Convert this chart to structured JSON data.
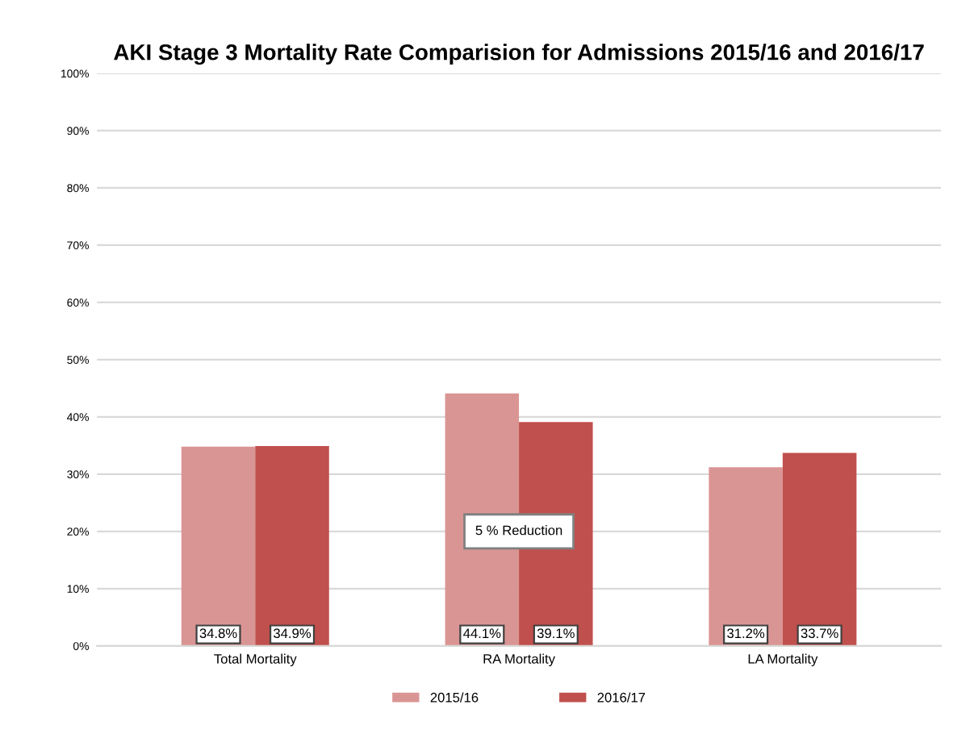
{
  "chart_data": {
    "type": "bar",
    "title": "AKI Stage 3 Mortality Rate Comparision for Admissions 2015/16 and 2016/17",
    "categories": [
      "Total Mortality",
      "RA Mortality",
      "LA Mortality"
    ],
    "series": [
      {
        "name": "2015/16",
        "color": "#d99594",
        "values": [
          34.8,
          44.1,
          31.2
        ],
        "value_labels": [
          "34.8%",
          "44.1%",
          "31.2%"
        ]
      },
      {
        "name": "2016/17",
        "color": "#c0504d",
        "values": [
          34.9,
          39.1,
          33.7
        ],
        "value_labels": [
          "34.9%",
          "39.1%",
          "33.7%"
        ]
      }
    ],
    "ylim": [
      0,
      100
    ],
    "yticks": [
      {
        "value": 0,
        "label": "0%"
      },
      {
        "value": 10,
        "label": "10%"
      },
      {
        "value": 20,
        "label": "20%"
      },
      {
        "value": 30,
        "label": "30%"
      },
      {
        "value": 40,
        "label": "40%"
      },
      {
        "value": 50,
        "label": "50%"
      },
      {
        "value": 60,
        "label": "60%"
      },
      {
        "value": 70,
        "label": "70%"
      },
      {
        "value": 80,
        "label": "80%"
      },
      {
        "value": 90,
        "label": "90%"
      },
      {
        "value": 100,
        "label": "100%"
      }
    ],
    "grid": "y",
    "legend": "bottom",
    "annotations": [
      "5 % Reduction"
    ]
  }
}
